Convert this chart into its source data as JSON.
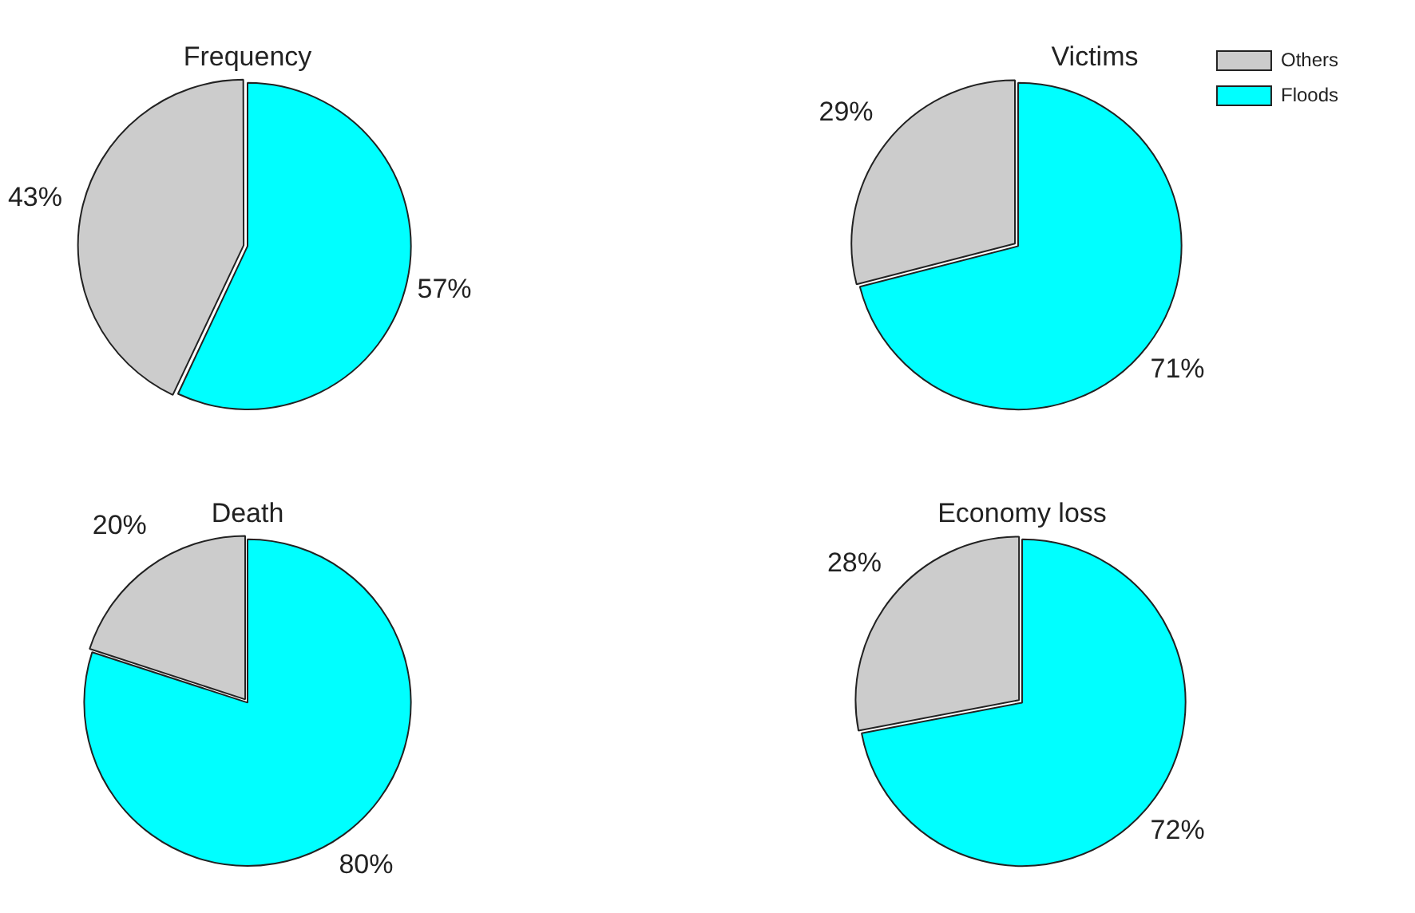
{
  "chart_data": [
    {
      "type": "pie",
      "title": "Frequency",
      "categories": [
        null,
        null
      ],
      "values": [
        43,
        57
      ],
      "value_labels": [
        "43%",
        "57%"
      ],
      "colors": [
        "#cccccc",
        "#00ffff"
      ]
    },
    {
      "type": "pie",
      "title": "Victims",
      "categories": [
        "Others",
        "Floods"
      ],
      "values": [
        29,
        71
      ],
      "value_labels": [
        "29%",
        "71%"
      ],
      "colors": [
        "#cccccc",
        "#00ffff"
      ],
      "legend": "top right"
    },
    {
      "type": "pie",
      "title": "Death",
      "categories": [
        null,
        null
      ],
      "values": [
        20,
        80
      ],
      "value_labels": [
        "20%",
        "80%"
      ],
      "colors": [
        "#cccccc",
        "#00ffff"
      ]
    },
    {
      "type": "pie",
      "title": "Economy loss",
      "categories": [
        null,
        null
      ],
      "values": [
        28,
        72
      ],
      "value_labels": [
        "28%",
        "72%"
      ],
      "colors": [
        "#cccccc",
        "#00ffff"
      ]
    }
  ]
}
